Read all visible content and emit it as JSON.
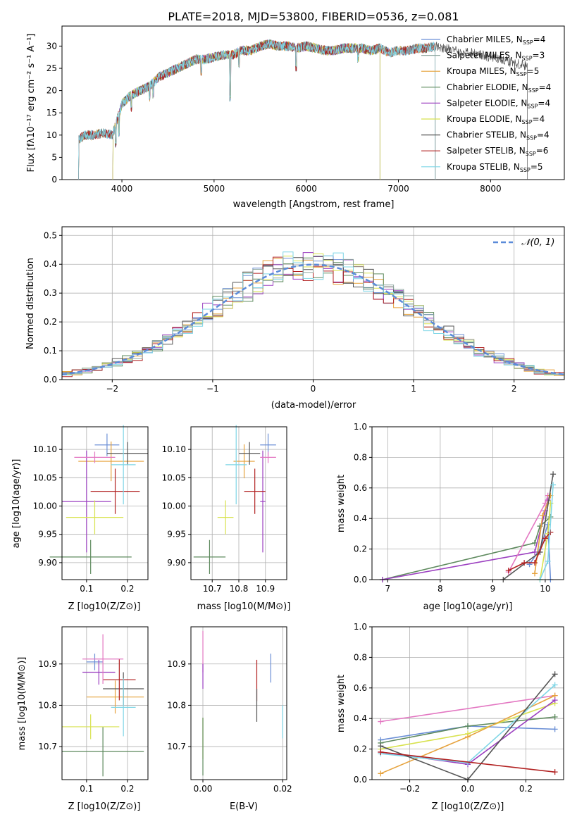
{
  "chart_data": [
    {
      "type": "line",
      "panel": "spectrum",
      "title": "PLATE=2018, MJD=53800, FIBERID=0536, z=0.081",
      "xlabel": "wavelength [Angstrom, rest frame]",
      "ylabel": "Flux [fλ10⁻¹⁷ erg cm⁻² s⁻¹ A⁻¹]",
      "xlim": [
        3350,
        8800
      ],
      "ylim": [
        0,
        34.5
      ],
      "xticks": [
        4000,
        5000,
        6000,
        7000,
        8000
      ],
      "yticks": [
        0,
        5,
        10,
        15,
        20,
        25,
        30
      ],
      "grid": false,
      "legend_position": "right",
      "continuum": {
        "x": [
          3530,
          3600,
          3700,
          3800,
          3900,
          4000,
          4100,
          4200,
          4300,
          4400,
          4500,
          4600,
          4700,
          4800,
          4900,
          5000,
          5100,
          5200,
          5300,
          5400,
          5500,
          5600,
          5700,
          5800,
          5900,
          6000,
          6100,
          6200,
          6300,
          6400,
          6500,
          6600,
          6700,
          6800,
          6900,
          7000,
          7100,
          7200,
          7300,
          7400,
          7500,
          7600,
          7700,
          7800,
          7900,
          8000,
          8100,
          8200,
          8300,
          8400
        ],
        "y": [
          9,
          10,
          10,
          10.5,
          10,
          17,
          19,
          20,
          21,
          23,
          24,
          25,
          26,
          27,
          27,
          27.5,
          28,
          28,
          29,
          29,
          30,
          30.5,
          30,
          30,
          29.5,
          30,
          29.5,
          29,
          29,
          29.5,
          29.5,
          29.5,
          29,
          29.5,
          28.5,
          29,
          29,
          29.5,
          29.5,
          30,
          29.5,
          29,
          28.5,
          28.5,
          28,
          27.5,
          27,
          26.5,
          26,
          25.5
        ]
      },
      "series": [
        {
          "name": "Chabrier MILES, N_SSP=4",
          "color": "#6b8fd6",
          "xmin": 3530,
          "xmax": 7400,
          "dropouts": []
        },
        {
          "name": "Salpeter MILES, N_SSP=3",
          "color": "#8fa7a0",
          "xmin": 3530,
          "xmax": 7400,
          "dropouts": []
        },
        {
          "name": "Kroupa MILES, N_SSP=5",
          "color": "#e6a23c",
          "xmin": 3530,
          "xmax": 7400,
          "dropouts": []
        },
        {
          "name": "Chabrier ELODIE, N_SSP=4",
          "color": "#5e8a5e",
          "xmin": 3900,
          "xmax": 6800,
          "dropouts": []
        },
        {
          "name": "Salpeter ELODIE, N_SSP=4",
          "color": "#9b3fc0",
          "xmin": 3900,
          "xmax": 6800,
          "dropouts": []
        },
        {
          "name": "Kroupa ELODIE, N_SSP=4",
          "color": "#d8e24f",
          "xmin": 3900,
          "xmax": 6800,
          "dropouts": []
        },
        {
          "name": "Chabrier STELIB, N_SSP=4",
          "color": "#555555",
          "xmin": 3530,
          "xmax": 8400,
          "dropouts": []
        },
        {
          "name": "Salpeter STELIB, N_SSP=6",
          "color": "#b22222",
          "xmin": 3530,
          "xmax": 7400,
          "dropouts": []
        },
        {
          "name": "Kroupa STELIB, N_SSP=5",
          "color": "#7fd6e6",
          "xmin": 3530,
          "xmax": 7400,
          "dropouts": []
        }
      ],
      "legend": [
        {
          "base": "Chabrier MILES, N",
          "sub": "SSP",
          "tail": "=4",
          "color": "#6b8fd6"
        },
        {
          "base": "Salpeter MILES, N",
          "sub": "SSP",
          "tail": "=3",
          "color": "#8fa7a0"
        },
        {
          "base": "Kroupa MILES, N",
          "sub": "SSP",
          "tail": "=5",
          "color": "#e6a23c"
        },
        {
          "base": "Chabrier ELODIE, N",
          "sub": "SSP",
          "tail": "=4",
          "color": "#5e8a5e"
        },
        {
          "base": "Salpeter ELODIE, N",
          "sub": "SSP",
          "tail": "=4",
          "color": "#9b3fc0"
        },
        {
          "base": "Kroupa ELODIE, N",
          "sub": "SSP",
          "tail": "=4",
          "color": "#d8e24f"
        },
        {
          "base": "Chabrier STELIB, N",
          "sub": "SSP",
          "tail": "=4",
          "color": "#555555"
        },
        {
          "base": "Salpeter STELIB, N",
          "sub": "SSP",
          "tail": "=6",
          "color": "#b22222"
        },
        {
          "base": "Kroupa STELIB, N",
          "sub": "SSP",
          "tail": "=5",
          "color": "#7fd6e6"
        }
      ]
    },
    {
      "type": "line",
      "panel": "residual-histogram",
      "xlabel": "(data-model)/error",
      "ylabel": "Normed distribution",
      "xlim": [
        -2.5,
        2.5
      ],
      "ylim": [
        0,
        0.53
      ],
      "xticks": [
        -2,
        -1,
        0,
        1,
        2
      ],
      "yticks": [
        0.0,
        0.1,
        0.2,
        0.3,
        0.4,
        0.5
      ],
      "grid": true,
      "legend_position": "top-right",
      "gaussian_label": "𝒩(0, 1)",
      "gaussian_color": "#5b8bd9",
      "bin_width": 0.1,
      "bin_start": -2.5,
      "hist_colors": [
        "#6b8fd6",
        "#e6a23c",
        "#5e8a5e",
        "#9b3fc0",
        "#d8e24f",
        "#555555",
        "#b22222",
        "#7fd6e6",
        "#8fa7a0"
      ]
    },
    {
      "type": "scatter",
      "panel": "age-vs-Z",
      "xlabel": "Z [log10(Z/Z⊙)]",
      "ylabel": "age  [log10(age/yr)]",
      "xlim": [
        0.04,
        0.25
      ],
      "ylim": [
        9.87,
        10.14
      ],
      "xticks": [
        0.1,
        0.2
      ],
      "yticks": [
        9.9,
        9.95,
        10.0,
        10.05,
        10.1
      ],
      "points": [
        {
          "x": 0.15,
          "y": 10.108,
          "xerr": 0.03,
          "yerr": 0.02,
          "color": "#6b8fd6"
        },
        {
          "x": 0.16,
          "y": 10.079,
          "xerr": 0.08,
          "yerr": 0.035,
          "color": "#e6a23c"
        },
        {
          "x": 0.11,
          "y": 9.91,
          "xerr": 0.1,
          "yerr": 0.03,
          "color": "#5e8a5e"
        },
        {
          "x": 0.1,
          "y": 10.008,
          "xerr": 0.06,
          "yerr": 0.09,
          "color": "#9b3fc0"
        },
        {
          "x": 0.12,
          "y": 9.98,
          "xerr": 0.07,
          "yerr": 0.03,
          "color": "#d8e24f"
        },
        {
          "x": 0.2,
          "y": 10.093,
          "xerr": 0.05,
          "yerr": 0.02,
          "color": "#555555"
        },
        {
          "x": 0.17,
          "y": 10.026,
          "xerr": 0.06,
          "yerr": 0.04,
          "color": "#b22222"
        },
        {
          "x": 0.19,
          "y": 10.073,
          "xerr": 0.03,
          "yerr": 0.07,
          "color": "#7fd6e6"
        },
        {
          "x": 0.12,
          "y": 10.086,
          "xerr": 0.05,
          "yerr": 0.01,
          "color": "#e377c2"
        }
      ]
    },
    {
      "type": "scatter",
      "panel": "age-vs-mass",
      "xlabel": "mass [log10(M/M⊙)]",
      "ylabel": "",
      "xlim": [
        10.62,
        10.98
      ],
      "ylim": [
        9.87,
        10.14
      ],
      "xticks": [
        10.7,
        10.8,
        10.9
      ],
      "yticks": [
        9.9,
        9.95,
        10.0,
        10.05,
        10.1
      ],
      "points": [
        {
          "x": 10.91,
          "y": 10.108,
          "xerr": 0.03,
          "yerr": 0.02,
          "color": "#6b8fd6"
        },
        {
          "x": 10.82,
          "y": 10.079,
          "xerr": 0.04,
          "yerr": 0.03,
          "color": "#e6a23c"
        },
        {
          "x": 10.69,
          "y": 9.91,
          "xerr": 0.06,
          "yerr": 0.03,
          "color": "#5e8a5e"
        },
        {
          "x": 10.89,
          "y": 10.008,
          "xerr": 0.01,
          "yerr": 0.09,
          "color": "#9b3fc0"
        },
        {
          "x": 10.75,
          "y": 9.98,
          "xerr": 0.03,
          "yerr": 0.03,
          "color": "#d8e24f"
        },
        {
          "x": 10.84,
          "y": 10.093,
          "xerr": 0.04,
          "yerr": 0.02,
          "color": "#555555"
        },
        {
          "x": 10.86,
          "y": 10.026,
          "xerr": 0.04,
          "yerr": 0.04,
          "color": "#b22222"
        },
        {
          "x": 10.79,
          "y": 10.073,
          "xerr": 0.04,
          "yerr": 0.07,
          "color": "#7fd6e6"
        },
        {
          "x": 10.91,
          "y": 10.086,
          "xerr": 0.03,
          "yerr": 0.01,
          "color": "#e377c2"
        }
      ]
    },
    {
      "type": "line",
      "panel": "mass-weight-vs-age",
      "xlabel": "age  [log10(age/yr)]",
      "ylabel": "mass weight",
      "xlim": [
        6.7,
        10.35
      ],
      "ylim": [
        0,
        1
      ],
      "xticks": [
        7,
        8,
        9,
        10
      ],
      "yticks": [
        0.0,
        0.2,
        0.4,
        0.6,
        0.8,
        1.0
      ],
      "grid": true,
      "series": [
        {
          "color": "#5e8a5e",
          "x": [
            6.9,
            9.8,
            9.9,
            10.1
          ],
          "y": [
            0.0,
            0.24,
            0.35,
            0.41
          ]
        },
        {
          "color": "#9b3fc0",
          "x": [
            6.9,
            9.8,
            10.0,
            10.05
          ],
          "y": [
            0.0,
            0.18,
            0.45,
            0.52
          ]
        },
        {
          "color": "#e377c2",
          "x": [
            9.3,
            10.0,
            10.05
          ],
          "y": [
            0.05,
            0.5,
            0.55
          ]
        },
        {
          "color": "#6b8fd6",
          "x": [
            9.7,
            9.9,
            10.05,
            10.1
          ],
          "y": [
            0.1,
            0.2,
            0.36,
            0.0
          ]
        },
        {
          "color": "#e6a23c",
          "x": [
            9.8,
            9.95,
            10.1
          ],
          "y": [
            0.04,
            0.42,
            0.55
          ]
        },
        {
          "color": "#d8e24f",
          "x": [
            9.9,
            10.05,
            10.1
          ],
          "y": [
            0.0,
            0.3,
            0.5
          ]
        },
        {
          "color": "#555555",
          "x": [
            9.2,
            9.9,
            10.15
          ],
          "y": [
            0.0,
            0.18,
            0.69
          ]
        },
        {
          "color": "#b22222",
          "x": [
            9.3,
            9.6,
            9.8,
            10.0,
            10.1
          ],
          "y": [
            0.06,
            0.11,
            0.11,
            0.27,
            0.31
          ]
        },
        {
          "color": "#7fd6e6",
          "x": [
            9.9,
            10.05,
            10.15
          ],
          "y": [
            0.0,
            0.12,
            0.62
          ]
        }
      ]
    },
    {
      "type": "scatter",
      "panel": "mass-vs-Z",
      "xlabel": "Z [log10(Z/Z⊙)]",
      "ylabel": "mass [log10(M/M⊙)]",
      "xlim": [
        0.04,
        0.25
      ],
      "ylim": [
        10.62,
        10.99
      ],
      "xticks": [
        0.1,
        0.2
      ],
      "yticks": [
        10.7,
        10.8,
        10.9
      ],
      "points": [
        {
          "x": 0.12,
          "y": 10.905,
          "xerr": 0.02,
          "yerr": 0.02,
          "color": "#6b8fd6"
        },
        {
          "x": 0.17,
          "y": 10.82,
          "xerr": 0.07,
          "yerr": 0.04,
          "color": "#e6a23c"
        },
        {
          "x": 0.14,
          "y": 10.688,
          "xerr": 0.1,
          "yerr": 0.06,
          "color": "#5e8a5e"
        },
        {
          "x": 0.13,
          "y": 10.88,
          "xerr": 0.04,
          "yerr": 0.03,
          "color": "#9b3fc0"
        },
        {
          "x": 0.11,
          "y": 10.748,
          "xerr": 0.07,
          "yerr": 0.03,
          "color": "#d8e24f"
        },
        {
          "x": 0.19,
          "y": 10.84,
          "xerr": 0.05,
          "yerr": 0.04,
          "color": "#555555"
        },
        {
          "x": 0.18,
          "y": 10.862,
          "xerr": 0.04,
          "yerr": 0.05,
          "color": "#b22222"
        },
        {
          "x": 0.19,
          "y": 10.795,
          "xerr": 0.03,
          "yerr": 0.07,
          "color": "#7fd6e6"
        },
        {
          "x": 0.14,
          "y": 10.912,
          "xerr": 0.05,
          "yerr": 0.06,
          "color": "#e377c2"
        }
      ]
    },
    {
      "type": "scatter",
      "panel": "mass-vs-EBV",
      "xlabel": "E(B-V)",
      "ylabel": "",
      "xlim": [
        -0.003,
        0.021
      ],
      "ylim": [
        10.62,
        10.99
      ],
      "xticks": [
        0.0,
        0.02
      ],
      "yticks": [
        10.7,
        10.8,
        10.9
      ],
      "points": [
        {
          "x": 0.017,
          "y": 10.89,
          "xerr": 0,
          "yerr": 0.035,
          "color": "#6b8fd6"
        },
        {
          "x": 0.0,
          "y": 10.93,
          "xerr": 0,
          "yerr": 0.05,
          "color": "#e377c2"
        },
        {
          "x": 0.0,
          "y": 10.87,
          "xerr": 0,
          "yerr": 0.03,
          "color": "#9b3fc0"
        },
        {
          "x": 0.0,
          "y": 10.72,
          "xerr": 0,
          "yerr": 0.05,
          "color": "#d8e24f"
        },
        {
          "x": 0.0,
          "y": 10.7,
          "xerr": 0,
          "yerr": 0.07,
          "color": "#5e8a5e"
        },
        {
          "x": 0.0135,
          "y": 10.86,
          "xerr": 0,
          "yerr": 0.05,
          "color": "#b22222"
        },
        {
          "x": 0.0135,
          "y": 10.8,
          "xerr": 0,
          "yerr": 0.04,
          "color": "#555555"
        },
        {
          "x": 0.02,
          "y": 10.76,
          "xerr": 0,
          "yerr": 0.04,
          "color": "#7fd6e6"
        }
      ]
    },
    {
      "type": "line",
      "panel": "mass-weight-vs-Z",
      "xlabel": "Z [log10(Z/Z⊙)]",
      "ylabel": "mass weight",
      "xlim": [
        -0.33,
        0.33
      ],
      "ylim": [
        0,
        1
      ],
      "xticks": [
        -0.2,
        0.0,
        0.2
      ],
      "yticks": [
        0.0,
        0.2,
        0.4,
        0.6,
        0.8,
        1.0
      ],
      "grid": true,
      "series": [
        {
          "color": "#e377c2",
          "x": [
            -0.3,
            0.3
          ],
          "y": [
            0.38,
            0.55
          ]
        },
        {
          "color": "#6b8fd6",
          "x": [
            -0.3,
            0.0,
            0.3
          ],
          "y": [
            0.26,
            0.35,
            0.33
          ]
        },
        {
          "color": "#5e8a5e",
          "x": [
            -0.3,
            0.0,
            0.3
          ],
          "y": [
            0.24,
            0.35,
            0.41
          ]
        },
        {
          "color": "#d8e24f",
          "x": [
            -0.3,
            0.0,
            0.3
          ],
          "y": [
            0.2,
            0.3,
            0.5
          ]
        },
        {
          "color": "#e6a23c",
          "x": [
            -0.3,
            0.0,
            0.3
          ],
          "y": [
            0.04,
            0.28,
            0.55
          ]
        },
        {
          "color": "#9b3fc0",
          "x": [
            -0.3,
            0.0,
            0.3
          ],
          "y": [
            0.18,
            0.1,
            0.52
          ]
        },
        {
          "color": "#7fd6e6",
          "x": [
            -0.3,
            0.0,
            0.3
          ],
          "y": [
            0.17,
            0.11,
            0.62
          ]
        },
        {
          "color": "#555555",
          "x": [
            -0.3,
            0.0,
            0.3
          ],
          "y": [
            0.22,
            0.0,
            0.69
          ]
        },
        {
          "color": "#b22222",
          "x": [
            -0.3,
            0.3
          ],
          "y": [
            0.18,
            0.05
          ]
        }
      ]
    }
  ]
}
